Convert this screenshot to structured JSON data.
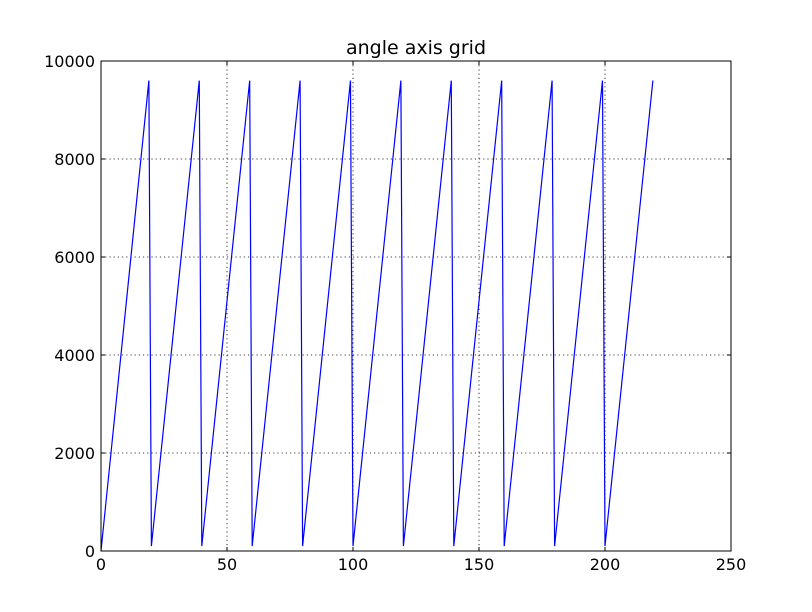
{
  "chart_data": {
    "type": "line",
    "title": "angle axis grid",
    "xlabel": "",
    "ylabel": "",
    "xlim": [
      0,
      250
    ],
    "ylim": [
      0,
      10000
    ],
    "xticks": [
      0,
      50,
      100,
      150,
      200,
      250
    ],
    "yticks": [
      0,
      2000,
      4000,
      6000,
      8000,
      10000
    ],
    "grid": true,
    "grid_style": "dotted",
    "series": [
      {
        "color": "#0000ff",
        "x": [
          0,
          19,
          20,
          39,
          40,
          59,
          60,
          79,
          80,
          99,
          100,
          119,
          120,
          139,
          140,
          159,
          160,
          179,
          180,
          199,
          200,
          219
        ],
        "y": [
          0,
          9600,
          100,
          9600,
          100,
          9600,
          100,
          9600,
          100,
          9600,
          100,
          9600,
          100,
          9600,
          100,
          9600,
          100,
          9600,
          100,
          9600,
          100,
          9600
        ]
      }
    ]
  }
}
